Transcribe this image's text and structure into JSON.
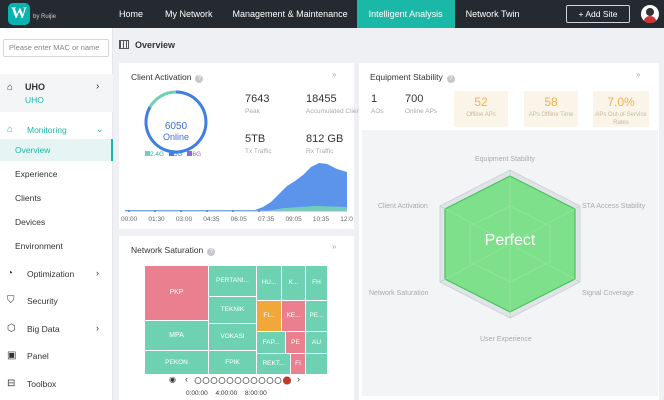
{
  "topbar": {
    "logo_text": "by Ruijie",
    "nav": [
      "Home",
      "My Network",
      "Management & Maintenance",
      "Intelligent Analysis",
      "Network Twin"
    ],
    "active_nav": "Intelligent Analysis",
    "add_site": "+ Add Site"
  },
  "sidebar": {
    "search_placeholder": "Please enter MAC or name",
    "uho_title": "UHO",
    "uho_sub": "UHO",
    "menu": {
      "monitoring": "Monitoring",
      "overview": "Overview",
      "experience": "Experience",
      "clients": "Clients",
      "devices": "Devices",
      "environment": "Environment",
      "optimization": "Optimization",
      "security": "Security",
      "big_data": "Big Data",
      "panel": "Panel",
      "toolbox": "Toolbox"
    }
  },
  "page_title": "Overview",
  "client_activation": {
    "title": "Client Activation",
    "donut_value": "6050",
    "donut_label": "Online",
    "legend": [
      "2.4G",
      "5G",
      "6G"
    ],
    "stats": [
      {
        "value": "7643",
        "label": "Peak"
      },
      {
        "value": "18455",
        "label": "Accumulated Clients"
      },
      {
        "value": "5TB",
        "label": "Tx Traffic"
      },
      {
        "value": "812 GB",
        "label": "Rx Traffic"
      }
    ],
    "times": [
      "00:00",
      "01:30",
      "03:00",
      "04:35",
      "06:05",
      "07:35",
      "09:05",
      "10:35",
      "12:0"
    ]
  },
  "equipment_stability": {
    "title": "Equipment Stability",
    "aos": {
      "value": "1",
      "label": "AOs"
    },
    "online_aps": {
      "value": "700",
      "label": "Online APs"
    },
    "boxes": [
      {
        "value": "52",
        "label": "Offline APs"
      },
      {
        "value": "58",
        "label": "APs Offline Time"
      },
      {
        "value": "7.0%",
        "label": "APs Out-of-Service Rates"
      }
    ],
    "radar_labels": [
      "Equipment Stability",
      "STA Access Stability",
      "Signal Coverage",
      "User Experience",
      "Network Saturation",
      "Client Activation"
    ],
    "radar_center": "Perfect"
  },
  "network_saturation": {
    "title": "Network Saturation",
    "cells": [
      "PKP",
      "MPA",
      "PEKON",
      "PERTANI...",
      "TEKNIK",
      "VOKASI",
      "FPIK",
      "HU...",
      "K...",
      "FH",
      "FI...",
      "KE...",
      "PE...",
      "FAP...",
      "PE",
      "AU",
      "REKT...",
      "FI"
    ],
    "timeline": [
      "0:00:00",
      "4:00:00",
      "8:00:00"
    ]
  },
  "colors": {
    "accent": "#1ab8a6",
    "treemap_green": "#6ed2b2",
    "treemap_red": "#e97f8f",
    "treemap_orange": "#f2a73b",
    "chart_blue": "#5c93eb"
  }
}
